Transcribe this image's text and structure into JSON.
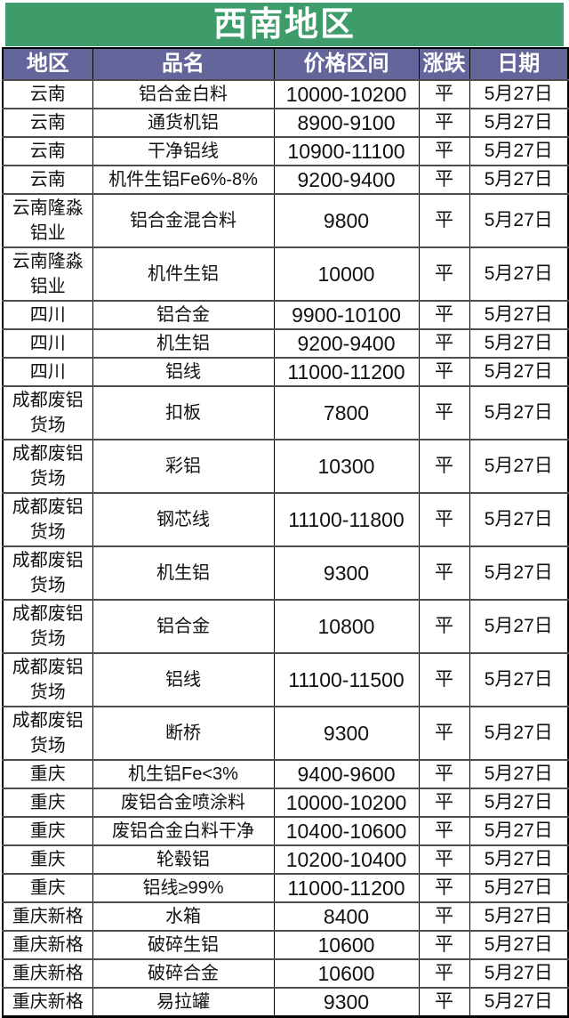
{
  "title": "西南地区",
  "colors": {
    "title_bg": "#3E9C6B",
    "title_fg": "#FFFFFF",
    "header_bg": "#64669B",
    "header_fg": "#FFFFFF",
    "date_color": "#FF0000",
    "grid_line": "#4d4d4d"
  },
  "chart_data": {
    "type": "table",
    "title": "西南地区",
    "columns": [
      "地区",
      "品名",
      "价格区间",
      "涨跌",
      "日期"
    ],
    "rows": [
      {
        "region": "云南",
        "product": "铝合金白料",
        "price": "10000-10200",
        "change": "平",
        "date": "5月27日"
      },
      {
        "region": "云南",
        "product": "通货机铝",
        "price": "8900-9100",
        "change": "平",
        "date": "5月27日"
      },
      {
        "region": "云南",
        "product": "干净铝线",
        "price": "10900-11100",
        "change": "平",
        "date": "5月27日"
      },
      {
        "region": "云南",
        "product": "机件生铝Fe6%-8%",
        "price": "9200-9400",
        "change": "平",
        "date": "5月27日"
      },
      {
        "region": "云南隆淼铝业",
        "product": "铝合金混合料",
        "price": "9800",
        "change": "平",
        "date": "5月27日"
      },
      {
        "region": "云南隆淼铝业",
        "product": "机件生铝",
        "price": "10000",
        "change": "平",
        "date": "5月27日"
      },
      {
        "region": "四川",
        "product": "铝合金",
        "price": "9900-10100",
        "change": "平",
        "date": "5月27日"
      },
      {
        "region": "四川",
        "product": "机生铝",
        "price": "9200-9400",
        "change": "平",
        "date": "5月27日"
      },
      {
        "region": "四川",
        "product": "铝线",
        "price": "11000-11200",
        "change": "平",
        "date": "5月27日"
      },
      {
        "region": "成都废铝货场",
        "product": "扣板",
        "price": "7800",
        "change": "平",
        "date": "5月27日"
      },
      {
        "region": "成都废铝货场",
        "product": "彩铝",
        "price": "10300",
        "change": "平",
        "date": "5月27日"
      },
      {
        "region": "成都废铝货场",
        "product": "钢芯线",
        "price": "11100-11800",
        "change": "平",
        "date": "5月27日"
      },
      {
        "region": "成都废铝货场",
        "product": "机生铝",
        "price": "9300",
        "change": "平",
        "date": "5月27日"
      },
      {
        "region": "成都废铝货场",
        "product": "铝合金",
        "price": "10800",
        "change": "平",
        "date": "5月27日"
      },
      {
        "region": "成都废铝货场",
        "product": "铝线",
        "price": "11100-11500",
        "change": "平",
        "date": "5月27日"
      },
      {
        "region": "成都废铝货场",
        "product": "断桥",
        "price": "9300",
        "change": "平",
        "date": "5月27日"
      },
      {
        "region": "重庆",
        "product": "机生铝Fe<3%",
        "price": "9400-9600",
        "change": "平",
        "date": "5月27日"
      },
      {
        "region": "重庆",
        "product": "废铝合金喷涂料",
        "price": "10000-10200",
        "change": "平",
        "date": "5月27日"
      },
      {
        "region": "重庆",
        "product": "废铝合金白料干净",
        "price": "10400-10600",
        "change": "平",
        "date": "5月27日"
      },
      {
        "region": "重庆",
        "product": "轮毂铝",
        "price": "10200-10400",
        "change": "平",
        "date": "5月27日"
      },
      {
        "region": "重庆",
        "product": "铝线≥99%",
        "price": "11000-11200",
        "change": "平",
        "date": "5月27日"
      },
      {
        "region": "重庆新格",
        "product": "水箱",
        "price": "8400",
        "change": "平",
        "date": "5月27日"
      },
      {
        "region": "重庆新格",
        "product": "破碎生铝",
        "price": "10600",
        "change": "平",
        "date": "5月27日"
      },
      {
        "region": "重庆新格",
        "product": "破碎合金",
        "price": "10600",
        "change": "平",
        "date": "5月27日"
      },
      {
        "region": "重庆新格",
        "product": "易拉罐",
        "price": "9300",
        "change": "平",
        "date": "5月27日"
      }
    ]
  }
}
